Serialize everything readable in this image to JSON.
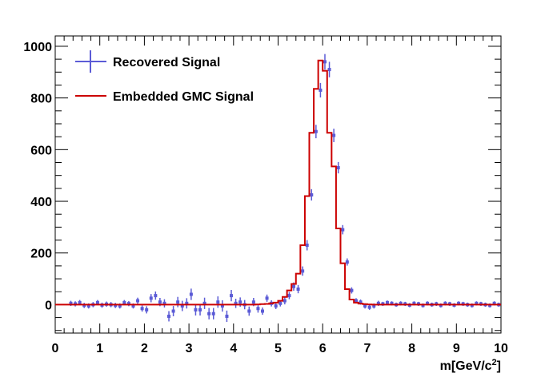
{
  "chart_data": {
    "type": "histogram",
    "xlabel": "m[GeV/c",
    "xlabel_sup": "2",
    "xlabel_end": "]",
    "xlim": [
      0,
      10
    ],
    "ylim": [
      -110,
      1040
    ],
    "x_ticks": [
      0,
      1,
      2,
      3,
      4,
      5,
      6,
      7,
      8,
      9,
      10
    ],
    "y_ticks": [
      0,
      200,
      400,
      600,
      800,
      1000
    ],
    "x_tick_labels": [
      "0",
      "1",
      "2",
      "3",
      "4",
      "5",
      "6",
      "7",
      "8",
      "9",
      "10"
    ],
    "y_tick_labels": [
      "0",
      "200",
      "400",
      "600",
      "800",
      "1000"
    ],
    "legend": {
      "position": "top-left",
      "entries": [
        "Recovered Signal",
        "Embedded GMC Signal"
      ]
    },
    "bin_width": 0.1,
    "bin_centers": [
      0.05,
      0.15,
      0.25,
      0.35,
      0.45,
      0.55,
      0.65,
      0.75,
      0.85,
      0.95,
      1.05,
      1.15,
      1.25,
      1.35,
      1.45,
      1.55,
      1.65,
      1.75,
      1.85,
      1.95,
      2.05,
      2.15,
      2.25,
      2.35,
      2.45,
      2.55,
      2.65,
      2.75,
      2.85,
      2.95,
      3.05,
      3.15,
      3.25,
      3.35,
      3.45,
      3.55,
      3.65,
      3.75,
      3.85,
      3.95,
      4.05,
      4.15,
      4.25,
      4.35,
      4.45,
      4.55,
      4.65,
      4.75,
      4.85,
      4.95,
      5.05,
      5.15,
      5.25,
      5.35,
      5.45,
      5.55,
      5.65,
      5.75,
      5.85,
      5.95,
      6.05,
      6.15,
      6.25,
      6.35,
      6.45,
      6.55,
      6.65,
      6.75,
      6.85,
      6.95,
      7.05,
      7.15,
      7.25,
      7.35,
      7.45,
      7.55,
      7.65,
      7.75,
      7.85,
      7.95,
      8.05,
      8.15,
      8.25,
      8.35,
      8.45,
      8.55,
      8.65,
      8.75,
      8.85,
      8.95,
      9.05,
      9.15,
      9.25,
      9.35,
      9.45,
      9.55,
      9.65,
      9.75,
      9.85,
      9.95
    ],
    "series": [
      {
        "name": "Recovered Signal",
        "color": "#5b5bd6",
        "values": [
          null,
          null,
          null,
          5,
          3,
          8,
          -3,
          -5,
          0,
          8,
          -2,
          2,
          0,
          -3,
          -5,
          8,
          4,
          -5,
          15,
          -15,
          -20,
          25,
          35,
          10,
          5,
          -45,
          -25,
          10,
          -5,
          5,
          40,
          -20,
          -20,
          5,
          -35,
          -35,
          10,
          -5,
          -45,
          35,
          5,
          10,
          0,
          -25,
          10,
          -15,
          -25,
          25,
          5,
          -5,
          5,
          15,
          35,
          70,
          60,
          130,
          230,
          425,
          670,
          830,
          940,
          910,
          655,
          530,
          290,
          165,
          55,
          15,
          10,
          -5,
          -10,
          -5,
          5,
          3,
          8,
          5,
          0,
          5,
          3,
          -2,
          5,
          3,
          -3,
          5,
          0,
          3,
          -3,
          5,
          3,
          -2,
          5,
          3,
          0,
          -3,
          5,
          3,
          0,
          -3,
          5,
          0
        ],
        "errors": [
          8,
          8,
          8,
          10,
          10,
          10,
          10,
          10,
          10,
          10,
          10,
          10,
          10,
          10,
          10,
          10,
          10,
          10,
          12,
          12,
          14,
          16,
          16,
          16,
          16,
          20,
          20,
          20,
          20,
          20,
          22,
          22,
          22,
          22,
          22,
          22,
          22,
          22,
          22,
          22,
          18,
          18,
          18,
          18,
          16,
          16,
          14,
          14,
          12,
          12,
          12,
          14,
          14,
          16,
          16,
          18,
          20,
          22,
          26,
          28,
          30,
          30,
          26,
          22,
          18,
          14,
          12,
          10,
          10,
          10,
          10,
          10,
          10,
          8,
          8,
          8,
          8,
          8,
          8,
          8,
          8,
          8,
          8,
          8,
          8,
          8,
          8,
          8,
          8,
          8,
          8,
          8,
          8,
          8,
          8,
          8,
          8,
          8,
          8,
          8
        ]
      },
      {
        "name": "Embedded GMC Signal",
        "color": "#cc0000",
        "values": [
          0,
          0,
          0,
          0,
          0,
          0,
          0,
          0,
          0,
          0,
          0,
          0,
          0,
          0,
          0,
          0,
          0,
          0,
          0,
          0,
          0,
          0,
          0,
          0,
          0,
          0,
          0,
          0,
          0,
          0,
          0,
          0,
          0,
          0,
          0,
          0,
          0,
          0,
          0,
          0,
          0,
          0,
          0,
          0,
          0,
          1,
          2,
          3,
          5,
          8,
          15,
          30,
          55,
          80,
          120,
          230,
          420,
          665,
          835,
          945,
          905,
          665,
          535,
          295,
          160,
          60,
          20,
          8,
          4,
          2,
          1,
          0,
          0,
          0,
          0,
          0,
          0,
          0,
          0,
          0,
          0,
          0,
          0,
          0,
          0,
          0,
          0,
          0,
          0,
          0,
          0,
          0,
          0,
          0,
          0,
          0,
          0,
          0,
          0,
          0
        ]
      }
    ]
  }
}
